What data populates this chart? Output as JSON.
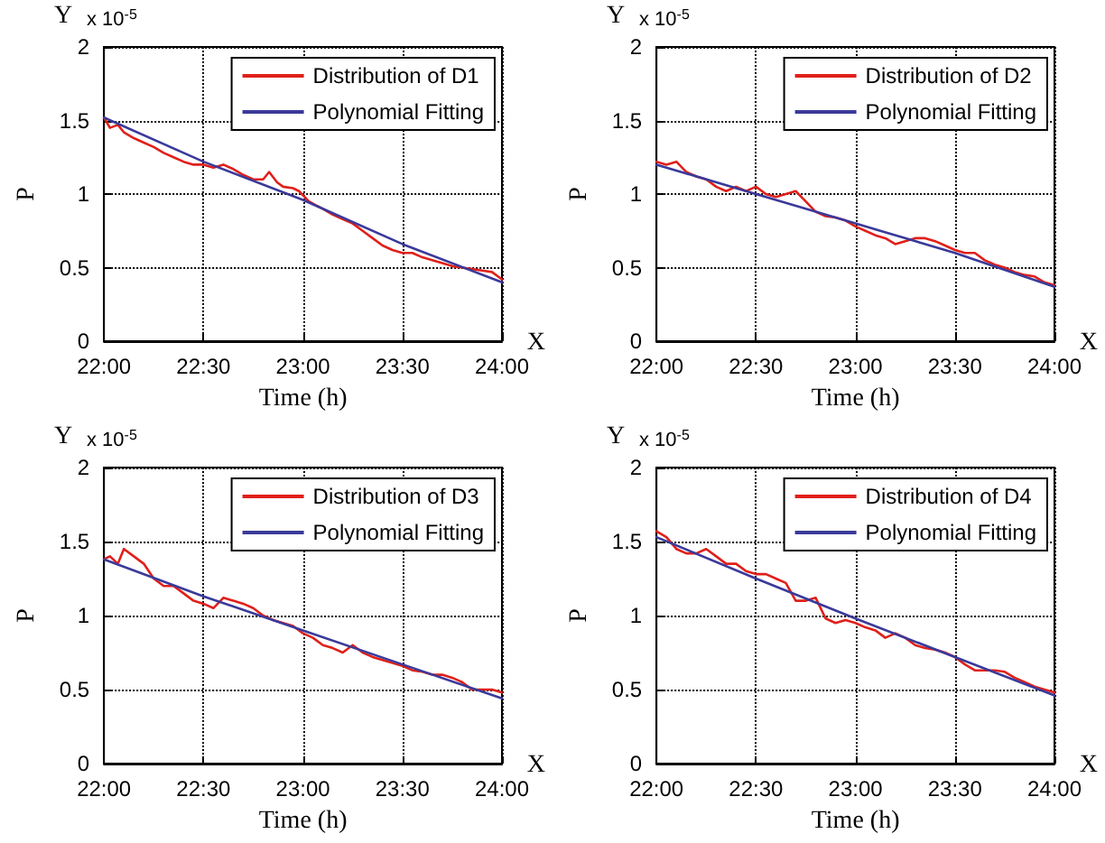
{
  "chart_data": [
    {
      "type": "line",
      "xlabel": "Time (h)",
      "ylabel": "P",
      "annotations": [
        "Y",
        "x 10$^{-5}$",
        "X"
      ],
      "xlim": [
        22,
        24
      ],
      "xticks": [
        {
          "value": 22,
          "label": "22:00"
        },
        {
          "value": 22.5,
          "label": "22:30"
        },
        {
          "value": 23,
          "label": "23:00"
        },
        {
          "value": 23.5,
          "label": "23:30"
        },
        {
          "value": 24,
          "label": "24:00"
        }
      ],
      "ylim": [
        0,
        2
      ],
      "yticks": [
        0,
        0.5,
        1,
        1.5,
        2
      ],
      "grid": true,
      "legend": "top right",
      "marker": "none",
      "line_style": "solid",
      "series": [
        {
          "name": "Distribution of D1",
          "color": "#e0201a",
          "x": [
            22,
            22.03,
            22.07,
            22.1,
            22.15,
            22.2,
            22.25,
            22.3,
            22.35,
            22.4,
            22.45,
            22.5,
            22.55,
            22.6,
            22.65,
            22.7,
            22.75,
            22.8,
            22.83,
            22.87,
            22.9,
            22.95,
            22.98,
            23.03,
            23.07,
            23.1,
            23.15,
            23.2,
            23.25,
            23.3,
            23.35,
            23.4,
            23.45,
            23.5,
            23.55,
            23.6,
            23.65,
            23.7,
            23.75,
            23.8,
            23.85,
            23.9,
            23.95,
            24
          ],
          "values": [
            1.52,
            1.45,
            1.47,
            1.42,
            1.38,
            1.35,
            1.32,
            1.28,
            1.25,
            1.22,
            1.2,
            1.2,
            1.18,
            1.2,
            1.17,
            1.13,
            1.1,
            1.1,
            1.15,
            1.08,
            1.05,
            1.04,
            1.02,
            0.95,
            0.92,
            0.9,
            0.86,
            0.83,
            0.8,
            0.75,
            0.7,
            0.65,
            0.62,
            0.6,
            0.6,
            0.57,
            0.55,
            0.53,
            0.51,
            0.5,
            0.49,
            0.48,
            0.47,
            0.42
          ]
        },
        {
          "name": "Polynomial Fitting",
          "color": "#3a3a9a",
          "x": [
            22,
            22.5,
            23,
            23.5,
            24
          ],
          "values": [
            1.52,
            1.22,
            0.96,
            0.66,
            0.4
          ]
        }
      ]
    },
    {
      "type": "line",
      "xlabel": "Time (h)",
      "ylabel": "P",
      "annotations": [
        "Y",
        "x 10$^{-5}$",
        "X"
      ],
      "xlim": [
        22,
        24
      ],
      "xticks": [
        {
          "value": 22,
          "label": "22:00"
        },
        {
          "value": 22.5,
          "label": "22:30"
        },
        {
          "value": 23,
          "label": "23:00"
        },
        {
          "value": 23.5,
          "label": "23:30"
        },
        {
          "value": 24,
          "label": "24:00"
        }
      ],
      "ylim": [
        0,
        2
      ],
      "yticks": [
        0,
        0.5,
        1,
        1.5,
        2
      ],
      "grid": true,
      "legend": "top right",
      "marker": "none",
      "line_style": "solid",
      "series": [
        {
          "name": "Distribution of D2",
          "color": "#e0201a",
          "x": [
            22,
            22.05,
            22.1,
            22.15,
            22.2,
            22.25,
            22.3,
            22.35,
            22.4,
            22.45,
            22.5,
            22.55,
            22.6,
            22.65,
            22.7,
            22.75,
            22.8,
            22.85,
            22.9,
            22.95,
            23,
            23.05,
            23.1,
            23.15,
            23.2,
            23.25,
            23.3,
            23.35,
            23.4,
            23.45,
            23.5,
            23.55,
            23.6,
            23.65,
            23.7,
            23.75,
            23.8,
            23.85,
            23.9,
            23.95,
            24
          ],
          "values": [
            1.22,
            1.2,
            1.22,
            1.15,
            1.12,
            1.1,
            1.05,
            1.02,
            1.05,
            1.02,
            1.05,
            1.0,
            0.98,
            1.0,
            1.02,
            0.95,
            0.88,
            0.85,
            0.84,
            0.82,
            0.78,
            0.75,
            0.72,
            0.7,
            0.66,
            0.68,
            0.7,
            0.7,
            0.68,
            0.65,
            0.62,
            0.6,
            0.6,
            0.55,
            0.52,
            0.5,
            0.47,
            0.45,
            0.44,
            0.4,
            0.38
          ]
        },
        {
          "name": "Polynomial Fitting",
          "color": "#3a3a9a",
          "x": [
            22,
            22.5,
            23,
            23.5,
            24
          ],
          "values": [
            1.2,
            1.0,
            0.8,
            0.6,
            0.37
          ]
        }
      ]
    },
    {
      "type": "line",
      "xlabel": "Time (h)",
      "ylabel": "P",
      "annotations": [
        "Y",
        "x 10$^{-5}$",
        "X"
      ],
      "xlim": [
        22,
        24
      ],
      "xticks": [
        {
          "value": 22,
          "label": "22:00"
        },
        {
          "value": 22.5,
          "label": "22:30"
        },
        {
          "value": 23,
          "label": "23:00"
        },
        {
          "value": 23.5,
          "label": "23:30"
        },
        {
          "value": 24,
          "label": "24:00"
        }
      ],
      "ylim": [
        0,
        2
      ],
      "yticks": [
        0,
        0.5,
        1,
        1.5,
        2
      ],
      "grid": true,
      "legend": "top right",
      "marker": "none",
      "line_style": "solid",
      "series": [
        {
          "name": "Distribution of D3",
          "color": "#e0201a",
          "x": [
            22,
            22.03,
            22.07,
            22.1,
            22.15,
            22.2,
            22.25,
            22.3,
            22.35,
            22.4,
            22.45,
            22.5,
            22.55,
            22.6,
            22.65,
            22.7,
            22.75,
            22.8,
            22.85,
            22.9,
            22.95,
            23,
            23.05,
            23.1,
            23.15,
            23.2,
            23.25,
            23.3,
            23.35,
            23.4,
            23.45,
            23.5,
            23.55,
            23.6,
            23.65,
            23.7,
            23.75,
            23.8,
            23.85,
            23.9,
            23.95,
            24
          ],
          "values": [
            1.38,
            1.4,
            1.35,
            1.45,
            1.4,
            1.35,
            1.25,
            1.2,
            1.2,
            1.15,
            1.1,
            1.08,
            1.05,
            1.12,
            1.1,
            1.08,
            1.05,
            1.0,
            0.97,
            0.95,
            0.93,
            0.88,
            0.85,
            0.8,
            0.78,
            0.75,
            0.8,
            0.75,
            0.72,
            0.7,
            0.68,
            0.66,
            0.63,
            0.62,
            0.6,
            0.6,
            0.58,
            0.55,
            0.5,
            0.5,
            0.5,
            0.48
          ]
        },
        {
          "name": "Polynomial Fitting",
          "color": "#3a3a9a",
          "x": [
            22,
            22.5,
            23,
            23.5,
            24
          ],
          "values": [
            1.38,
            1.13,
            0.9,
            0.67,
            0.44
          ]
        }
      ]
    },
    {
      "type": "line",
      "xlabel": "Time (h)",
      "ylabel": "P",
      "annotations": [
        "Y",
        "x 10$^{-5}$",
        "X"
      ],
      "xlim": [
        22,
        24
      ],
      "xticks": [
        {
          "value": 22,
          "label": "22:00"
        },
        {
          "value": 22.5,
          "label": "22:30"
        },
        {
          "value": 23,
          "label": "23:00"
        },
        {
          "value": 23.5,
          "label": "23:30"
        },
        {
          "value": 24,
          "label": "24:00"
        }
      ],
      "ylim": [
        0,
        2
      ],
      "yticks": [
        0,
        0.5,
        1,
        1.5,
        2
      ],
      "grid": true,
      "legend": "top right",
      "marker": "none",
      "line_style": "solid",
      "series": [
        {
          "name": "Distribution of D4",
          "color": "#e0201a",
          "x": [
            22,
            22.05,
            22.1,
            22.15,
            22.2,
            22.25,
            22.3,
            22.35,
            22.4,
            22.45,
            22.5,
            22.55,
            22.6,
            22.65,
            22.7,
            22.75,
            22.8,
            22.85,
            22.9,
            22.95,
            23,
            23.05,
            23.1,
            23.15,
            23.2,
            23.25,
            23.3,
            23.35,
            23.4,
            23.45,
            23.5,
            23.55,
            23.6,
            23.65,
            23.7,
            23.75,
            23.8,
            23.85,
            23.9,
            23.95,
            24
          ],
          "values": [
            1.57,
            1.53,
            1.45,
            1.42,
            1.42,
            1.45,
            1.4,
            1.35,
            1.35,
            1.3,
            1.28,
            1.28,
            1.25,
            1.22,
            1.1,
            1.1,
            1.12,
            0.98,
            0.95,
            0.97,
            0.95,
            0.92,
            0.9,
            0.85,
            0.88,
            0.85,
            0.8,
            0.78,
            0.77,
            0.75,
            0.72,
            0.67,
            0.63,
            0.63,
            0.63,
            0.62,
            0.58,
            0.55,
            0.52,
            0.5,
            0.48
          ]
        },
        {
          "name": "Polynomial Fitting",
          "color": "#3a3a9a",
          "x": [
            22,
            22.5,
            23,
            23.5,
            24
          ],
          "values": [
            1.53,
            1.25,
            0.98,
            0.72,
            0.46
          ]
        }
      ]
    }
  ]
}
